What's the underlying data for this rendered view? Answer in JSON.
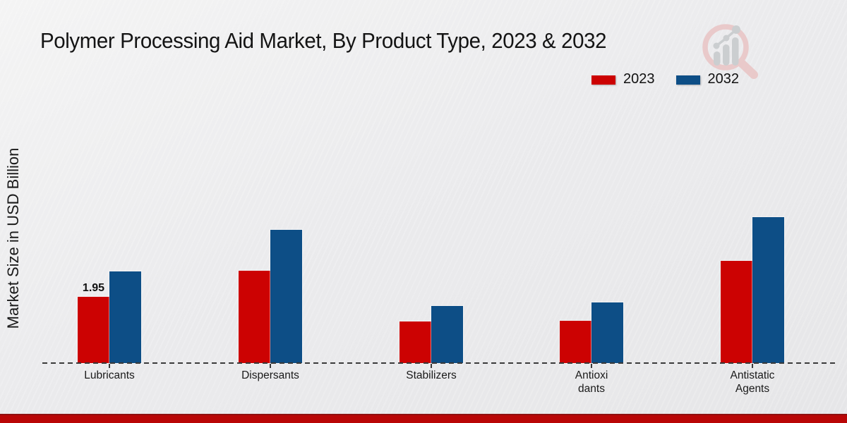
{
  "title": "Polymer Processing Aid Market, By Product Type, 2023 & 2032",
  "ylabel": "Market Size in USD Billion",
  "legend": {
    "items": [
      {
        "label": "2023"
      },
      {
        "label": "2032"
      }
    ]
  },
  "colors": {
    "bar_2023": "#cc0202",
    "bar_2032": "#0d4e86",
    "footer_strip": "#b90606",
    "baseline": "#3a3a3a",
    "background": "#ececee",
    "logo_ring": "#e9c4c4",
    "logo_gray": "#c6c9cb"
  },
  "chart_data": {
    "type": "bar",
    "title": "Polymer Processing Aid Market, By Product Type, 2023 & 2032",
    "xlabel": "",
    "ylabel": "Market Size in USD Billion",
    "categories": [
      "Lubricants",
      "Dispersants",
      "Stabilizers",
      "Antioxi\ndants",
      "Antistatic\nAgents"
    ],
    "series": [
      {
        "name": "2023",
        "color": "#cc0202",
        "values": [
          1.95,
          2.72,
          1.22,
          1.25,
          3.03
        ]
      },
      {
        "name": "2032",
        "color": "#0d4e86",
        "values": [
          2.7,
          3.93,
          1.68,
          1.79,
          4.32
        ]
      }
    ],
    "data_labels": [
      {
        "series_index": 0,
        "category_index": 0,
        "text": "1.95"
      }
    ],
    "ylim": [
      0,
      5
    ],
    "grid": false,
    "y_axis_ticks_visible": false,
    "legend_position": "top-right",
    "baseline_style": "dashed"
  }
}
